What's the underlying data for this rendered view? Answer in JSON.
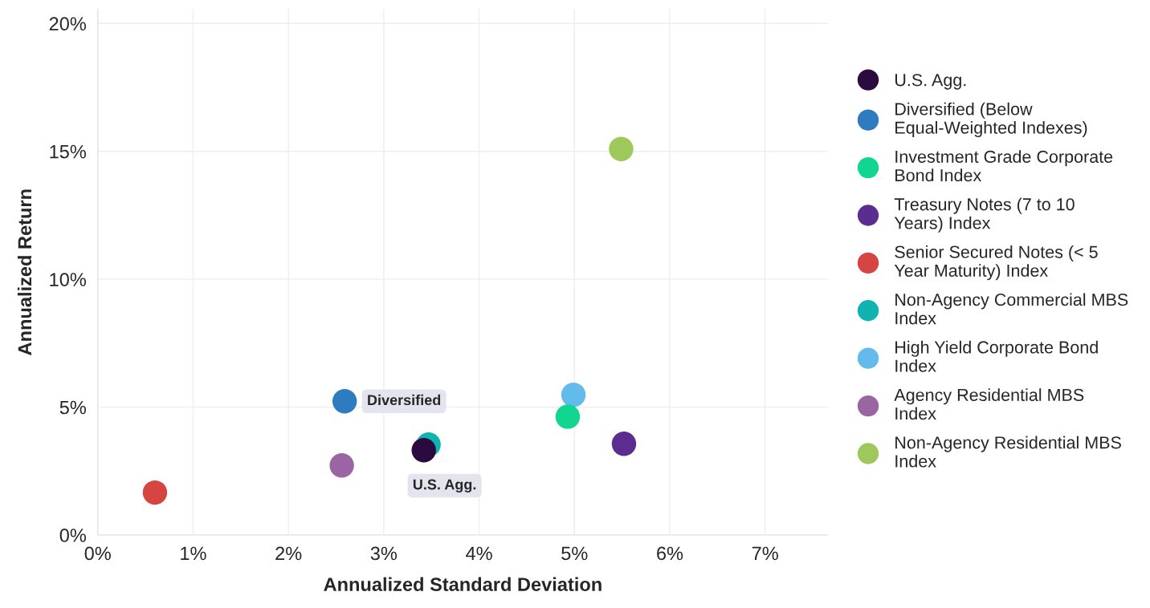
{
  "chart_data": {
    "type": "scatter",
    "xlabel": "Annualized Standard Deviation",
    "ylabel": "Annualized Return",
    "xlim": [
      0,
      7.66
    ],
    "ylim": [
      0,
      20.56
    ],
    "xticks": [
      {
        "value": 0,
        "label": "0%"
      },
      {
        "value": 1,
        "label": "1%"
      },
      {
        "value": 2,
        "label": "2%"
      },
      {
        "value": 3,
        "label": "3%"
      },
      {
        "value": 4,
        "label": "4%"
      },
      {
        "value": 5,
        "label": "5%"
      },
      {
        "value": 6,
        "label": "6%"
      },
      {
        "value": 7,
        "label": "7%"
      }
    ],
    "yticks": [
      {
        "value": 0,
        "label": "0%"
      },
      {
        "value": 5,
        "label": "5%"
      },
      {
        "value": 10,
        "label": "10%"
      },
      {
        "value": 15,
        "label": "15%"
      },
      {
        "value": 20,
        "label": "20%"
      }
    ],
    "grid": true,
    "legend": "right",
    "marker": "circle",
    "series": [
      {
        "name": "U.S. Agg.",
        "color": "#2a0a3f",
        "x": [
          3.42
        ],
        "values": [
          3.32
        ]
      },
      {
        "name": "Diversified (Below\nEqual-Weighted Indexes)",
        "color": "#2f7bbf",
        "x": [
          2.59
        ],
        "values": [
          5.23
        ]
      },
      {
        "name": "Investment Grade Corporate\nBond Index",
        "color": "#12d68f",
        "x": [
          4.93
        ],
        "values": [
          4.63
        ]
      },
      {
        "name": "Treasury Notes (7 to 10\nYears) Index",
        "color": "#5c2d91",
        "x": [
          5.52
        ],
        "values": [
          3.57
        ]
      },
      {
        "name": "Senior Secured Notes (< 5\nYear Maturity) Index",
        "color": "#d64541",
        "x": [
          0.6
        ],
        "values": [
          1.66
        ]
      },
      {
        "name": "Non-Agency Commercial MBS\nIndex",
        "color": "#0fb3b0",
        "x": [
          3.47
        ],
        "values": [
          3.54
        ]
      },
      {
        "name": "High Yield Corporate Bond\nIndex",
        "color": "#63bbeb",
        "x": [
          4.99
        ],
        "values": [
          5.48
        ]
      },
      {
        "name": "Agency Residential MBS\nIndex",
        "color": "#9b64a3",
        "x": [
          2.56
        ],
        "values": [
          2.72
        ]
      },
      {
        "name": "Non-Agency Residential MBS\nIndex",
        "color": "#9ec85c",
        "x": [
          5.49
        ],
        "values": [
          15.09
        ]
      }
    ],
    "annotations": [
      {
        "text": "Diversified",
        "x": 2.59,
        "y": 5.23
      },
      {
        "text": "U.S. Agg.",
        "x": 3.42,
        "y": 3.32
      }
    ]
  }
}
